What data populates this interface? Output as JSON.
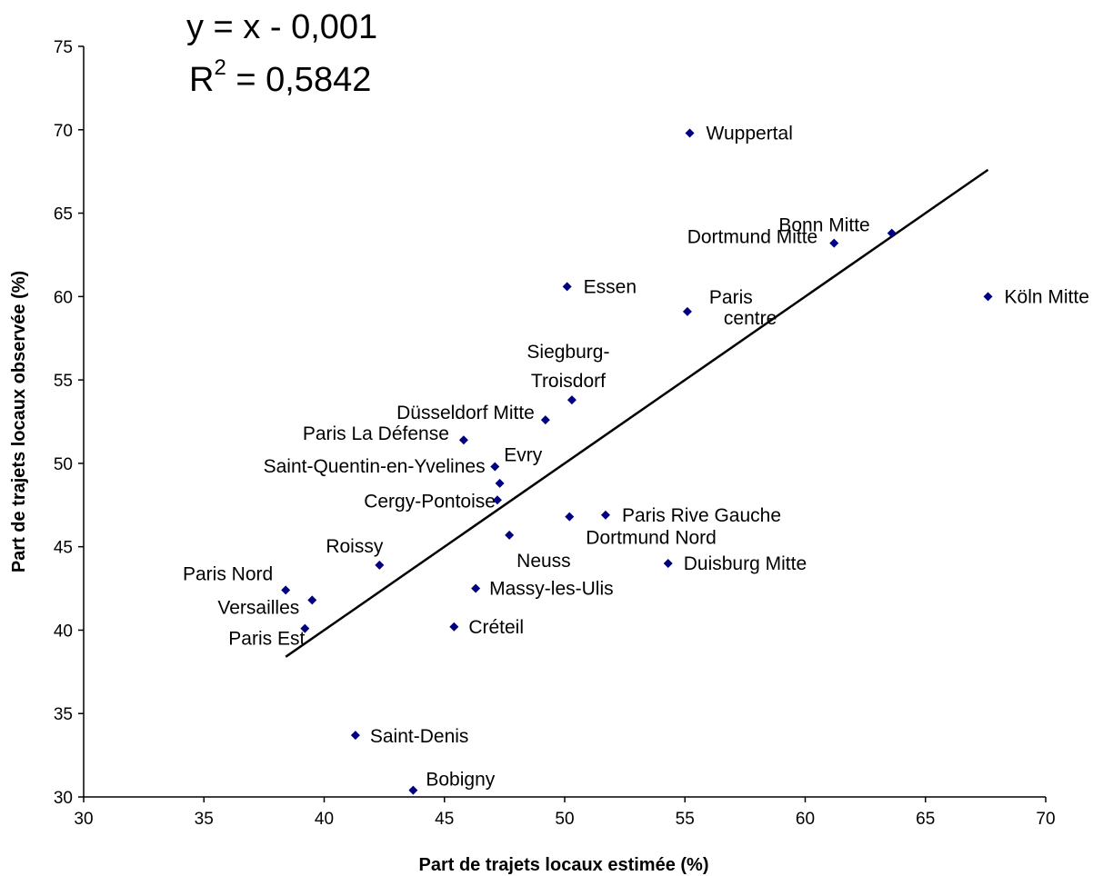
{
  "chart_data": {
    "type": "scatter",
    "xlabel": "Part de trajets locaux estimée (%)",
    "ylabel": "Part de trajets locaux observée (%)",
    "xlim": [
      30,
      70
    ],
    "ylim": [
      30,
      75
    ],
    "x_ticks": [
      "30",
      "35",
      "40",
      "45",
      "50",
      "55",
      "60",
      "65",
      "70"
    ],
    "y_ticks": [
      "30",
      "35",
      "40",
      "45",
      "50",
      "55",
      "60",
      "65",
      "70",
      "75"
    ],
    "grid": false,
    "marker_color": "#000080",
    "line_color": "#000000",
    "equation": {
      "line1": "y = x - 0,001",
      "r2_prefix": "R",
      "r2_exp": "2",
      "r2_value": " = 0,5842"
    },
    "trendline": {
      "slope": 1,
      "intercept": -0.001,
      "x_range": [
        38.4,
        67.6
      ]
    },
    "points": [
      {
        "name": "Wuppertal",
        "x": 55.2,
        "y": 69.8
      },
      {
        "name": "Bonn Mitte",
        "x": 63.6,
        "y": 63.8
      },
      {
        "name": "Dortmund Mitte",
        "x": 61.2,
        "y": 63.2
      },
      {
        "name": "Köln Mitte",
        "x": 67.6,
        "y": 60.0
      },
      {
        "name": "Essen",
        "x": 50.1,
        "y": 60.6
      },
      {
        "name": "Paris centre",
        "x": 55.1,
        "y": 59.1
      },
      {
        "name": "Siegburg-Troisdorf",
        "x": 50.3,
        "y": 53.8
      },
      {
        "name": "Düsseldorf Mitte",
        "x": 49.2,
        "y": 52.6
      },
      {
        "name": "Paris La Défense",
        "x": 45.8,
        "y": 51.4
      },
      {
        "name": "Evry",
        "x": 47.1,
        "y": 49.8
      },
      {
        "name": "Saint-Quentin-en-Yvelines",
        "x": 47.3,
        "y": 48.8
      },
      {
        "name": "Cergy-Pontoise",
        "x": 47.2,
        "y": 47.8
      },
      {
        "name": "Paris Rive Gauche",
        "x": 51.7,
        "y": 46.9
      },
      {
        "name": "Dortmund Nord",
        "x": 50.2,
        "y": 46.8
      },
      {
        "name": "Neuss",
        "x": 47.7,
        "y": 45.7
      },
      {
        "name": "Duisburg Mitte",
        "x": 54.3,
        "y": 44.0
      },
      {
        "name": "Roissy",
        "x": 42.3,
        "y": 43.9
      },
      {
        "name": "Massy-les-Ulis",
        "x": 46.3,
        "y": 42.5
      },
      {
        "name": "Paris Nord",
        "x": 38.4,
        "y": 42.4
      },
      {
        "name": "Versailles",
        "x": 39.5,
        "y": 41.8
      },
      {
        "name": "Paris Est",
        "x": 39.2,
        "y": 40.1
      },
      {
        "name": "Créteil",
        "x": 45.4,
        "y": 40.2
      },
      {
        "name": "Saint-Denis",
        "x": 41.3,
        "y": 33.7
      },
      {
        "name": "Bobigny",
        "x": 43.7,
        "y": 30.4
      }
    ]
  }
}
